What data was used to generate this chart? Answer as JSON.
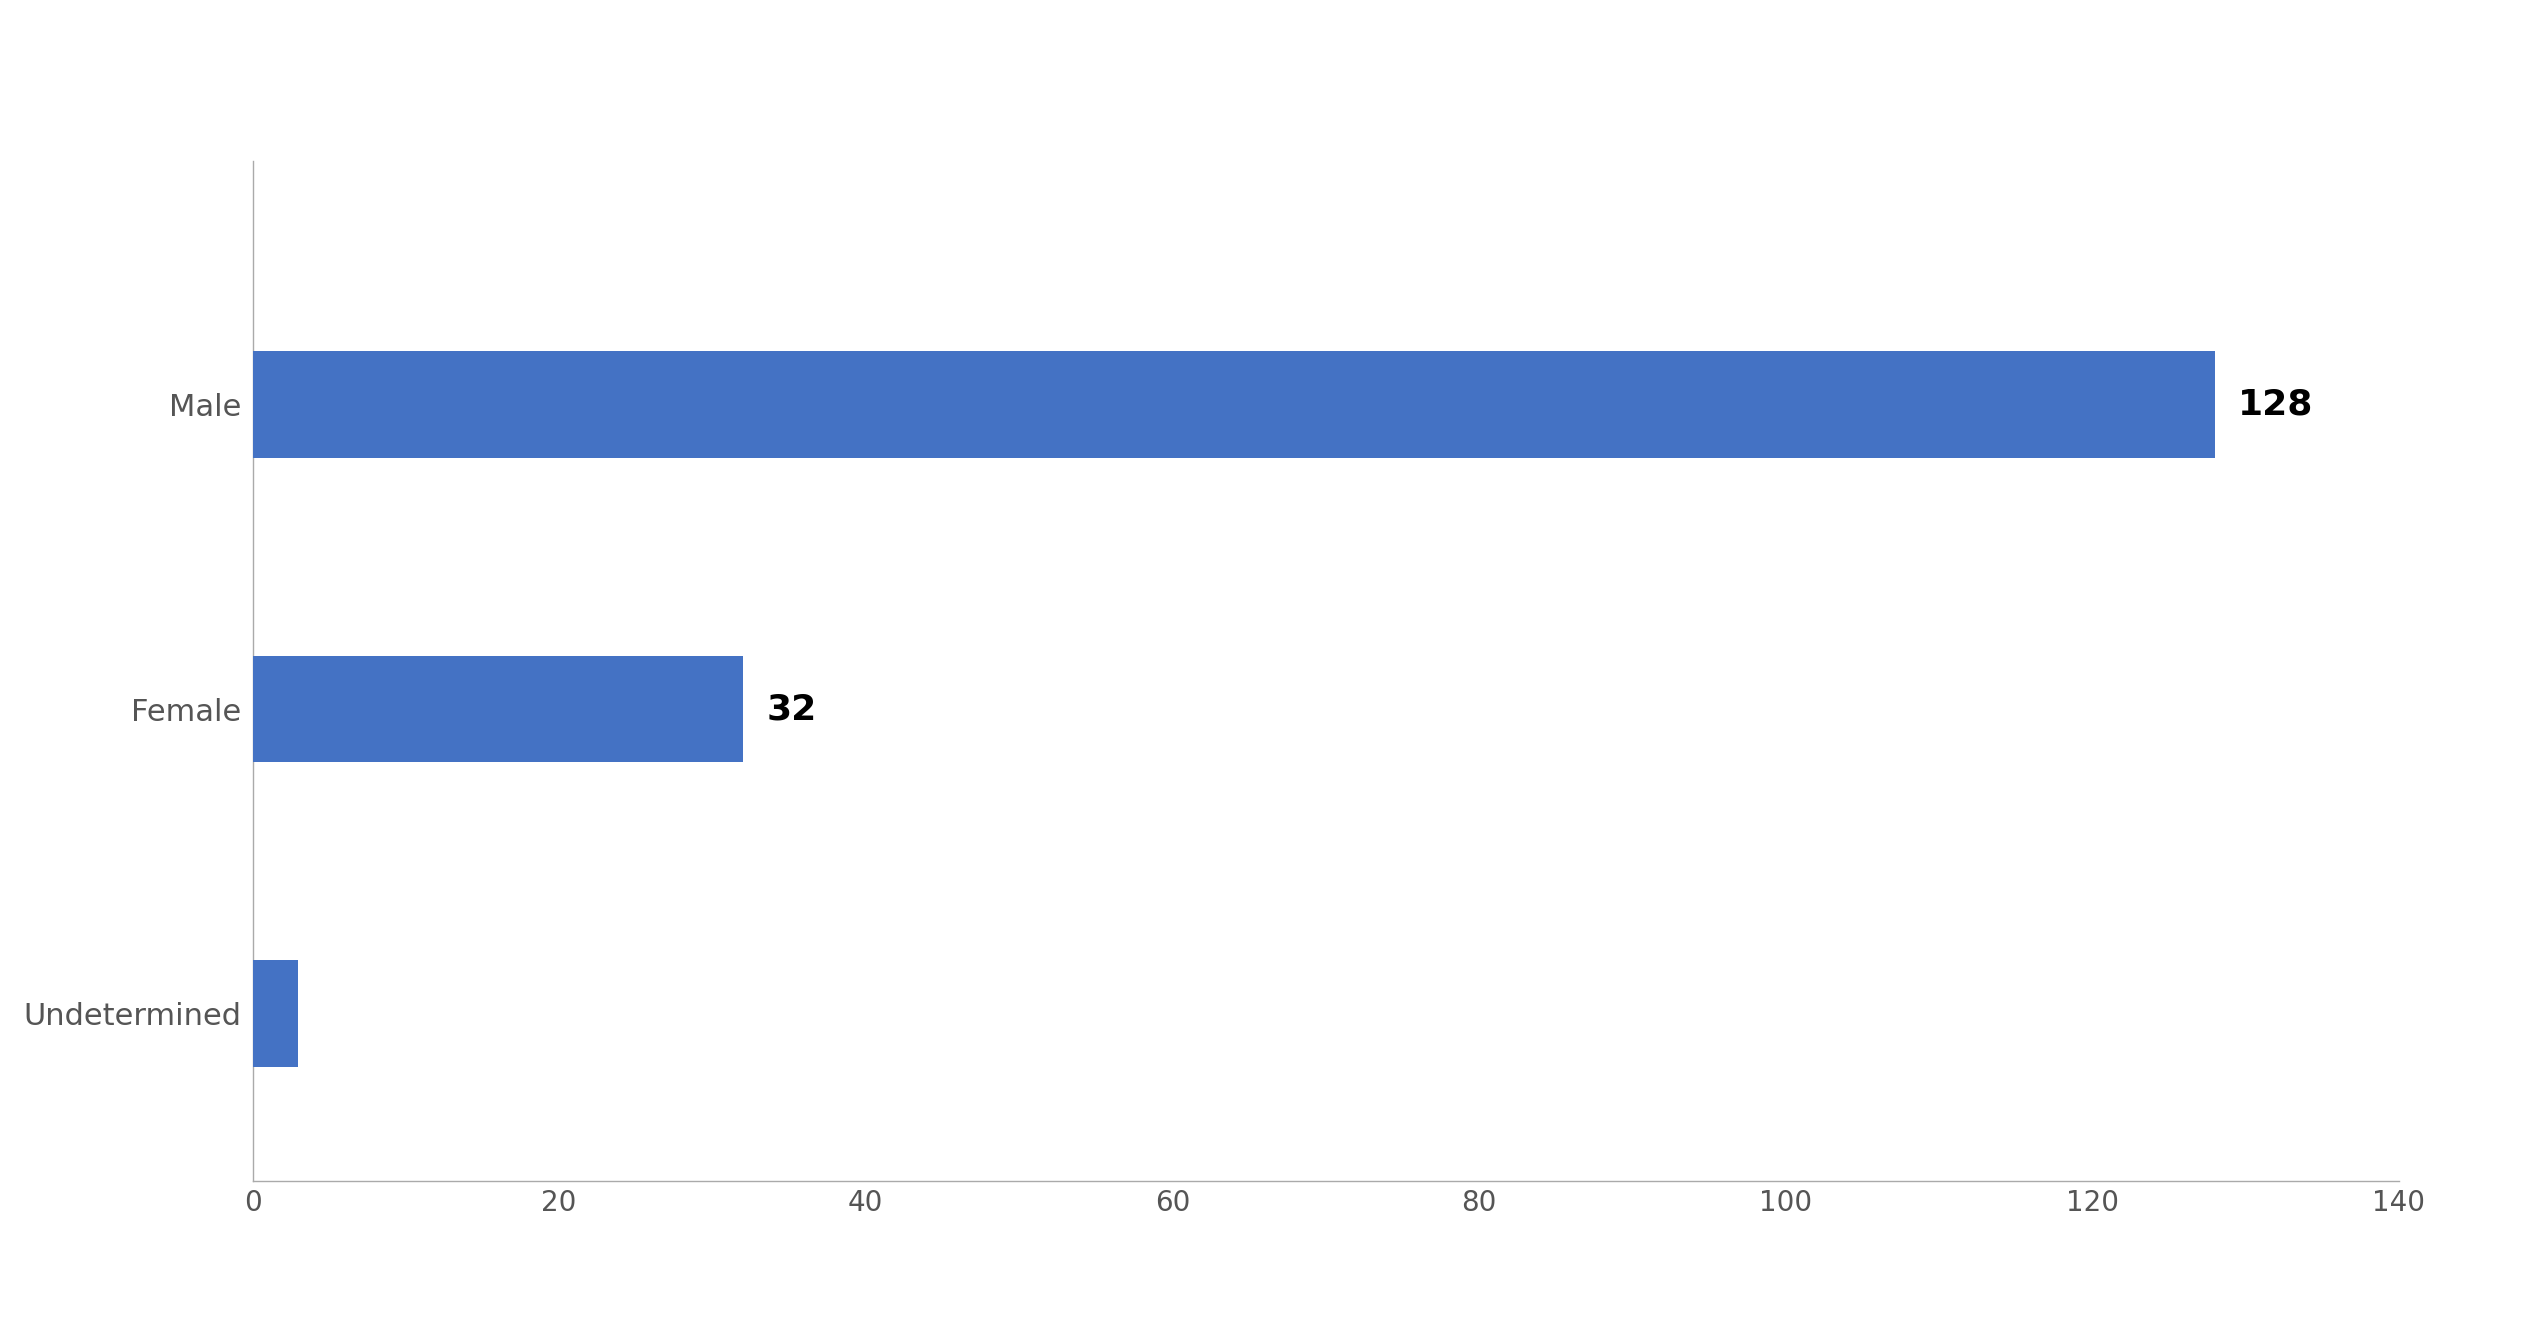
{
  "categories": [
    "Male",
    "Female",
    "Undetermined"
  ],
  "values": [
    128,
    32,
    3
  ],
  "bar_color": "#4472C4",
  "label_values": [
    128,
    32,
    null
  ],
  "xlim": [
    0,
    140
  ],
  "xticks": [
    0,
    20,
    40,
    60,
    80,
    100,
    120,
    140
  ],
  "background_color": "#ffffff",
  "bar_height": 0.35,
  "label_fontsize": 26,
  "tick_fontsize": 20,
  "ytick_fontsize": 22,
  "value_fontweight": "bold"
}
